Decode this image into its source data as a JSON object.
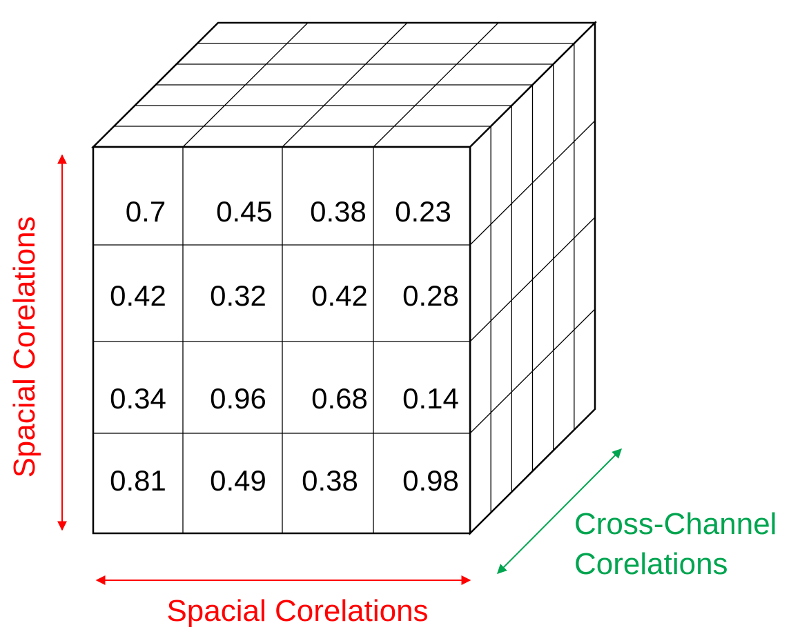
{
  "cube": {
    "rows": [
      [
        "0.7",
        "0.45",
        "0.38",
        "0.23"
      ],
      [
        "0.42",
        "0.32",
        "0.42",
        "0.28"
      ],
      [
        "0.34",
        "0.96",
        "0.68",
        "0.14"
      ],
      [
        "0.81",
        "0.49",
        "0.38",
        "0.98"
      ]
    ],
    "channel_layers": 6
  },
  "labels": {
    "vertical_axis": "Spacial Corelations",
    "horizontal_axis": "Spacial Corelations",
    "depth_axis_line1": "Cross-Channel",
    "depth_axis_line2": "Corelations"
  },
  "colors": {
    "spatial": "#ff0000",
    "channel": "#00a550",
    "grid": "#000000"
  }
}
